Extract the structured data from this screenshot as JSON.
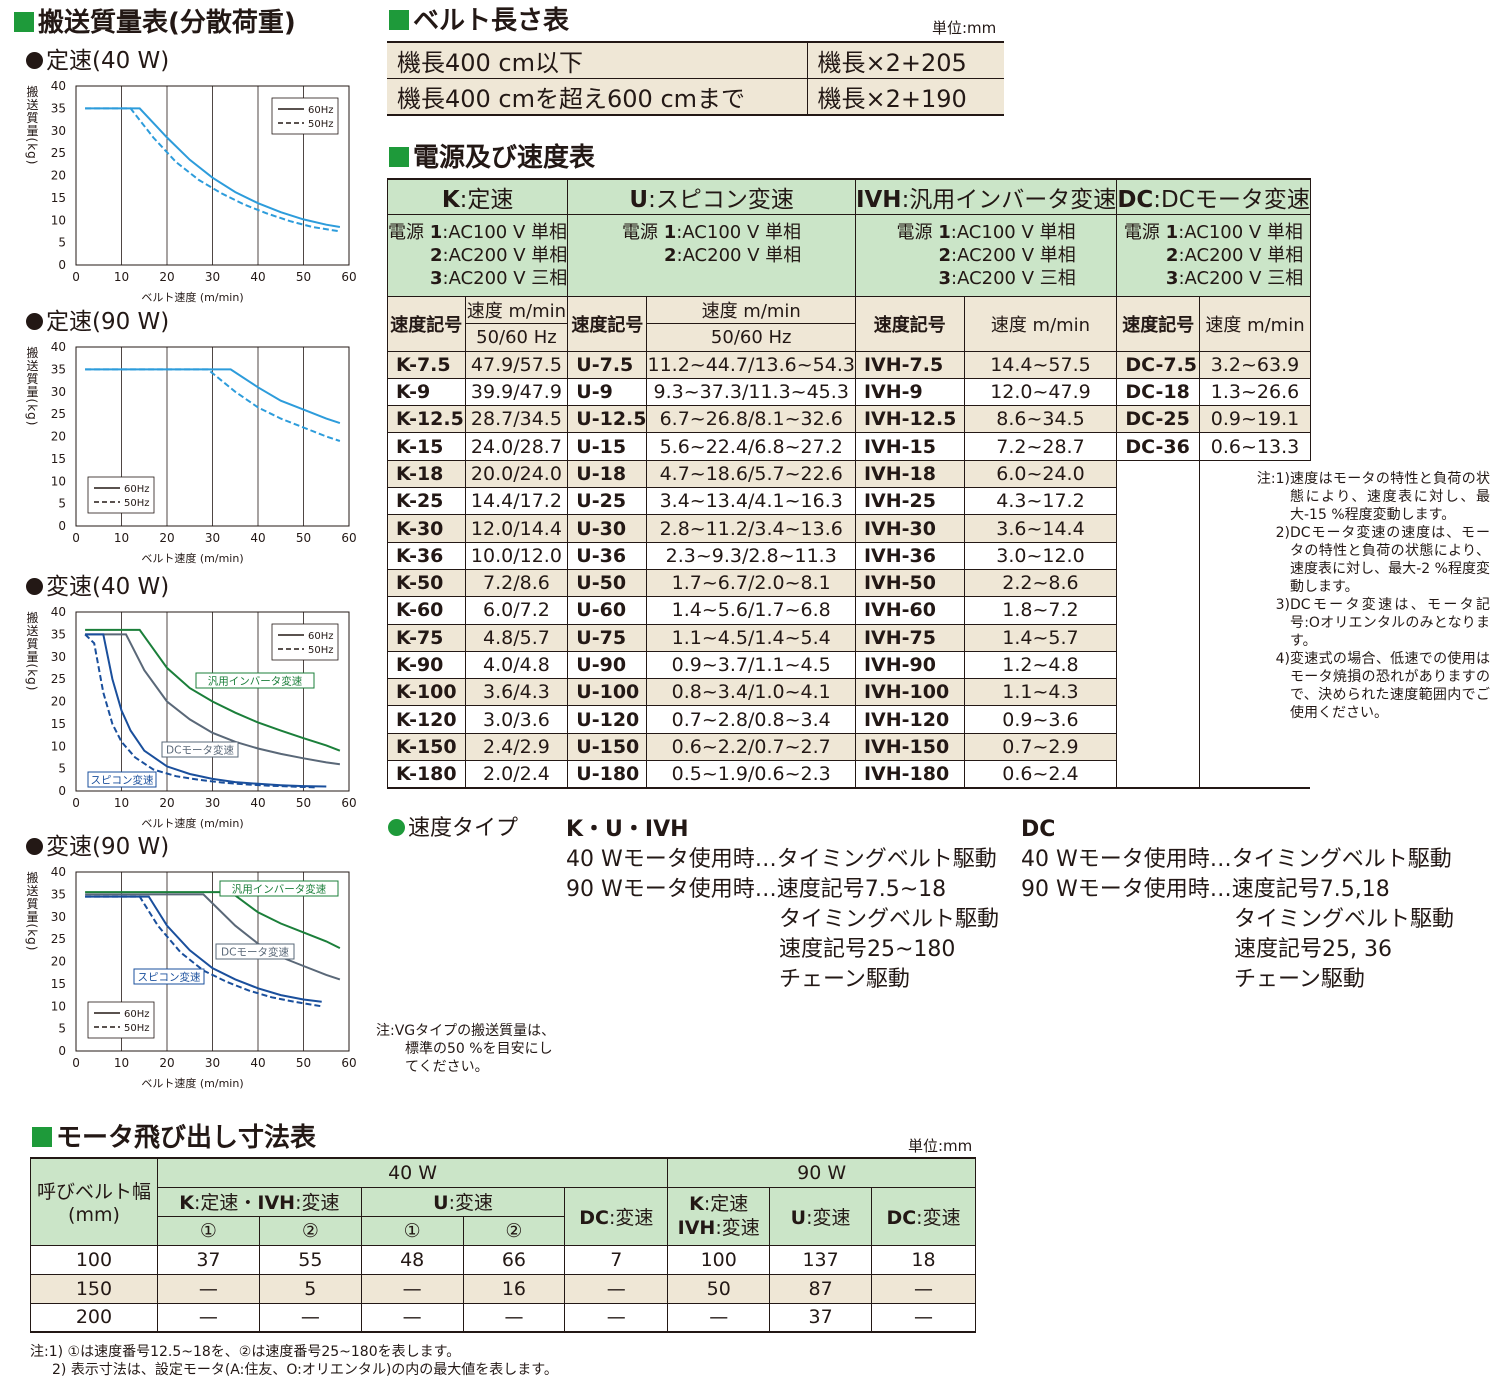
{
  "left": {
    "title": "搬送質量表(分散荷重)",
    "charts": [
      {
        "title": "定速(40 W)",
        "xlabel": "ベルト速度 (m/min)",
        "ylabel": "搬送質量(kg)",
        "legend": [
          "60Hz",
          "50Hz"
        ],
        "labels": []
      },
      {
        "title": "定速(90 W)",
        "xlabel": "ベルト速度 (m/min)",
        "ylabel": "搬送質量(kg)",
        "legend": [
          "60Hz",
          "50Hz"
        ],
        "labels": []
      },
      {
        "title": "変速(40 W)",
        "xlabel": "ベルト速度 (m/min)",
        "ylabel": "搬送質量(kg)",
        "legend": [
          "60Hz",
          "50Hz"
        ],
        "labels": [
          "汎用インバータ変速",
          "DCモータ変速",
          "スピコン変速"
        ]
      },
      {
        "title": "変速(90 W)",
        "xlabel": "ベルト速度 (m/min)",
        "ylabel": "搬送質量(kg)",
        "legend": [
          "60Hz",
          "50Hz"
        ],
        "labels": [
          "汎用インバータ変速",
          "DCモータ変速",
          "スピコン変速"
        ]
      }
    ],
    "note": [
      "注:VGタイプの搬送質量は、",
      "標準の50 %を目安にし",
      "てください。"
    ]
  },
  "chart_data": [
    {
      "type": "line",
      "xlim": [
        0,
        60
      ],
      "ylim": [
        0,
        40
      ],
      "xticks": [
        0,
        10,
        20,
        30,
        40,
        50,
        60
      ],
      "yticks": [
        0,
        5,
        10,
        15,
        20,
        25,
        30,
        35,
        40
      ],
      "grid": "vertical",
      "legend": "top-right",
      "series": [
        {
          "name": "60Hz",
          "color": "#2d9cdb",
          "dash": false,
          "x": [
            2,
            14,
            20,
            25,
            30,
            35,
            40,
            45,
            50,
            55,
            58
          ],
          "y": [
            35,
            35,
            28.5,
            23.5,
            19.5,
            16.3,
            13.8,
            11.8,
            10.2,
            9,
            8.5
          ]
        },
        {
          "name": "50Hz",
          "color": "#2d9cdb",
          "dash": true,
          "x": [
            2,
            12,
            17,
            22,
            27,
            32,
            37,
            42,
            47,
            52,
            58
          ],
          "y": [
            35,
            35,
            28.5,
            23,
            19,
            16,
            13.5,
            11.5,
            9.8,
            8.5,
            7.5
          ]
        }
      ]
    },
    {
      "type": "line",
      "xlim": [
        0,
        60
      ],
      "ylim": [
        0,
        40
      ],
      "xticks": [
        0,
        10,
        20,
        30,
        40,
        50,
        60
      ],
      "yticks": [
        0,
        5,
        10,
        15,
        20,
        25,
        30,
        35,
        40
      ],
      "grid": "vertical",
      "legend": "bottom-left",
      "series": [
        {
          "name": "60Hz",
          "color": "#2d9cdb",
          "dash": false,
          "x": [
            2,
            34,
            40,
            45,
            50,
            55,
            58
          ],
          "y": [
            35,
            35,
            31,
            28,
            26,
            24,
            23
          ]
        },
        {
          "name": "50Hz",
          "color": "#2d9cdb",
          "dash": true,
          "x": [
            2,
            29,
            35,
            40,
            45,
            50,
            55,
            58
          ],
          "y": [
            35,
            35,
            30,
            26.5,
            24,
            22,
            20,
            19
          ]
        }
      ]
    },
    {
      "type": "line",
      "xlim": [
        0,
        60
      ],
      "ylim": [
        0,
        40
      ],
      "xticks": [
        0,
        10,
        20,
        30,
        40,
        50,
        60
      ],
      "yticks": [
        0,
        5,
        10,
        15,
        20,
        25,
        30,
        35,
        40
      ],
      "grid": "vertical",
      "legend": "top-right",
      "series": [
        {
          "name": "汎用インバータ変速",
          "color": "#1b7f3a",
          "dash": false,
          "x": [
            2,
            14,
            20,
            25,
            30,
            35,
            40,
            45,
            50,
            55,
            58
          ],
          "y": [
            36,
            36,
            27.5,
            23,
            20,
            17.5,
            15.3,
            13.5,
            11.8,
            10.2,
            9
          ]
        },
        {
          "name": "DCモータ変速",
          "color": "#5a6878",
          "dash": false,
          "x": [
            2,
            11,
            15,
            20,
            25,
            30,
            35,
            40,
            45,
            50,
            55,
            58
          ],
          "y": [
            35,
            35,
            27,
            20,
            16,
            13,
            11,
            9.5,
            8.3,
            7.3,
            6.4,
            6
          ]
        },
        {
          "name": "スピコン変速 60Hz",
          "color": "#1a4f9c",
          "dash": false,
          "x": [
            2,
            6,
            8,
            10,
            12,
            15,
            20,
            25,
            30,
            35,
            40,
            45,
            50,
            55
          ],
          "y": [
            35,
            35,
            25,
            18,
            13.5,
            9,
            5.5,
            3.8,
            2.7,
            2,
            1.6,
            1.3,
            1.1,
            1
          ]
        },
        {
          "name": "スピコン変速 50Hz",
          "color": "#1a4f9c",
          "dash": true,
          "x": [
            2,
            4,
            6,
            8,
            10,
            13,
            17,
            22,
            27,
            32,
            37,
            42,
            47,
            53
          ],
          "y": [
            35,
            33,
            22,
            15,
            11,
            7.5,
            4.8,
            3.3,
            2.5,
            1.9,
            1.5,
            1.2,
            1,
            0.8
          ]
        }
      ]
    },
    {
      "type": "line",
      "xlim": [
        0,
        60
      ],
      "ylim": [
        0,
        40
      ],
      "xticks": [
        0,
        10,
        20,
        30,
        40,
        50,
        60
      ],
      "yticks": [
        0,
        5,
        10,
        15,
        20,
        25,
        30,
        35,
        40
      ],
      "grid": "vertical",
      "legend": "bottom-left",
      "series": [
        {
          "name": "汎用インバータ変速",
          "color": "#1b7f3a",
          "dash": false,
          "x": [
            2,
            34,
            40,
            45,
            50,
            55,
            58
          ],
          "y": [
            35.5,
            35.5,
            31,
            28.5,
            26.5,
            24.5,
            23
          ]
        },
        {
          "name": "DCモータ変速",
          "color": "#5a6878",
          "dash": false,
          "x": [
            2,
            28,
            35,
            40,
            45,
            50,
            55,
            58
          ],
          "y": [
            35,
            35,
            28,
            24,
            21,
            19,
            17,
            16
          ]
        },
        {
          "name": "スピコン変速 60Hz",
          "color": "#1a4f9c",
          "dash": false,
          "x": [
            2,
            16,
            20,
            25,
            30,
            35,
            40,
            45,
            50,
            54
          ],
          "y": [
            34.5,
            34.5,
            28,
            22.5,
            18.5,
            16,
            14,
            12.5,
            11.5,
            11
          ]
        },
        {
          "name": "スピコン変速 50Hz",
          "color": "#1a4f9c",
          "dash": true,
          "x": [
            2,
            14,
            18,
            23,
            28,
            33,
            38,
            43,
            48,
            54
          ],
          "y": [
            34.5,
            34.5,
            28,
            22,
            18,
            15.5,
            13.5,
            12,
            11,
            10
          ]
        }
      ]
    }
  ],
  "belt": {
    "title": "ベルト長さ表",
    "unit": "単位:mm",
    "rows": [
      {
        "label": "機長400 cm以下",
        "value": "機長×2+205"
      },
      {
        "label": "機長400 cmを超え600 cmまで",
        "value": "機長×2+190"
      }
    ]
  },
  "speed": {
    "title": "電源及び速度表",
    "groups": [
      {
        "code": "K",
        "name": ":定速"
      },
      {
        "code": "U",
        "name": ":スピコン変速"
      },
      {
        "code": "IVH",
        "name": ":汎用インバータ変速"
      },
      {
        "code": "DC",
        "name": ":DCモータ変速"
      }
    ],
    "power": {
      "label": "電源",
      "three": [
        {
          "n": "1",
          "t": ":AC100 V 単相"
        },
        {
          "n": "2",
          "t": ":AC200 V 単相"
        },
        {
          "n": "3",
          "t": ":AC200 V 三相"
        }
      ]
    },
    "hdr": {
      "code": "速度記号",
      "speed": "速度 m/min",
      "hz": "50/60 Hz"
    },
    "rows": [
      [
        "K-7.5",
        "47.9/57.5",
        "U-7.5",
        "11.2~44.7/13.6~54.3",
        "IVH-7.5",
        "14.4~57.5",
        "DC-7.5",
        "3.2~63.9"
      ],
      [
        "K-9",
        "39.9/47.9",
        "U-9",
        "9.3~37.3/11.3~45.3",
        "IVH-9",
        "12.0~47.9",
        "DC-18",
        "1.3~26.6"
      ],
      [
        "K-12.5",
        "28.7/34.5",
        "U-12.5",
        "6.7~26.8/8.1~32.6",
        "IVH-12.5",
        "8.6~34.5",
        "DC-25",
        "0.9~19.1"
      ],
      [
        "K-15",
        "24.0/28.7",
        "U-15",
        "5.6~22.4/6.8~27.2",
        "IVH-15",
        "7.2~28.7",
        "DC-36",
        "0.6~13.3"
      ],
      [
        "K-18",
        "20.0/24.0",
        "U-18",
        "4.7~18.6/5.7~22.6",
        "IVH-18",
        "6.0~24.0",
        "",
        ""
      ],
      [
        "K-25",
        "14.4/17.2",
        "U-25",
        "3.4~13.4/4.1~16.3",
        "IVH-25",
        "4.3~17.2",
        "",
        ""
      ],
      [
        "K-30",
        "12.0/14.4",
        "U-30",
        "2.8~11.2/3.4~13.6",
        "IVH-30",
        "3.6~14.4",
        "",
        ""
      ],
      [
        "K-36",
        "10.0/12.0",
        "U-36",
        "2.3~9.3/2.8~11.3",
        "IVH-36",
        "3.0~12.0",
        "",
        ""
      ],
      [
        "K-50",
        "7.2/8.6",
        "U-50",
        "1.7~6.7/2.0~8.1",
        "IVH-50",
        "2.2~8.6",
        "",
        ""
      ],
      [
        "K-60",
        "6.0/7.2",
        "U-60",
        "1.4~5.6/1.7~6.8",
        "IVH-60",
        "1.8~7.2",
        "",
        ""
      ],
      [
        "K-75",
        "4.8/5.7",
        "U-75",
        "1.1~4.5/1.4~5.4",
        "IVH-75",
        "1.4~5.7",
        "",
        ""
      ],
      [
        "K-90",
        "4.0/4.8",
        "U-90",
        "0.9~3.7/1.1~4.5",
        "IVH-90",
        "1.2~4.8",
        "",
        ""
      ],
      [
        "K-100",
        "3.6/4.3",
        "U-100",
        "0.8~3.4/1.0~4.1",
        "IVH-100",
        "1.1~4.3",
        "",
        ""
      ],
      [
        "K-120",
        "3.0/3.6",
        "U-120",
        "0.7~2.8/0.8~3.4",
        "IVH-120",
        "0.9~3.6",
        "",
        ""
      ],
      [
        "K-150",
        "2.4/2.9",
        "U-150",
        "0.6~2.2/0.7~2.7",
        "IVH-150",
        "0.7~2.9",
        "",
        ""
      ],
      [
        "K-180",
        "2.0/2.4",
        "U-180",
        "0.5~1.9/0.6~2.3",
        "IVH-180",
        "0.6~2.4",
        "",
        ""
      ]
    ],
    "notes": [
      {
        "k": "注:1)",
        "t": "速度はモータの特性と負荷の状態により、速度表に対し、最大-15 %程度変動します。"
      },
      {
        "k": "2)",
        "t": "DCモータ変速の速度は、モータの特性と負荷の状態により、速度表に対し、最大-2 %程度変動します。"
      },
      {
        "k": "3)",
        "t": "DCモータ変速は、モータ記号:Oオリエンタルのみとなります。"
      },
      {
        "k": "4)",
        "t": "変速式の場合、低速での使用はモータ焼損の恐れがありますので、決められた速度範囲内でご使用ください。"
      }
    ]
  },
  "speed_type": {
    "title": "速度タイプ",
    "kuivh": {
      "head": "K・U・IVH",
      "lines": [
        "40 Wモータ使用時…タイミングベルト駆動",
        "90 Wモータ使用時…速度記号7.5~18",
        "タイミングベルト駆動",
        "速度記号25~180",
        "チェーン駆動"
      ]
    },
    "dc": {
      "head": "DC",
      "lines": [
        "40 Wモータ使用時…タイミングベルト駆動",
        "90 Wモータ使用時…速度記号7.5,18",
        "タイミングベルト駆動",
        "速度記号25, 36",
        "チェーン駆動"
      ]
    }
  },
  "motor": {
    "title": "モータ飛び出し寸法表",
    "unit": "単位:mm",
    "bw_label": "呼びベルト幅",
    "bw_unit": "(mm)",
    "w40": "40 W",
    "w90": "90 W",
    "k_ivh_code": "K",
    "k_ivh_name": ":定速・",
    "ivh_code": "IVH",
    "ivh_name": ":変速",
    "u_code": "U",
    "u_name": ":変速",
    "dc_code": "DC",
    "dc_name": ":変速",
    "k90_code": "K",
    "k90_name": ":定速",
    "ivh90_code": "IVH",
    "ivh90_name": ":変速",
    "c1": "①",
    "c2": "②",
    "rows": [
      [
        "100",
        "37",
        "55",
        "48",
        "66",
        "7",
        "100",
        "137",
        "18"
      ],
      [
        "150",
        "—",
        "5",
        "—",
        "16",
        "—",
        "50",
        "87",
        "—"
      ],
      [
        "200",
        "—",
        "—",
        "—",
        "—",
        "—",
        "—",
        "37",
        "—"
      ]
    ],
    "notes": [
      "注:1) ①は速度番号12.5~18を、②は速度番号25~180を表します。",
      "2) 表示寸法は、設定モータ(A:住友、O:オリエンタル)の内の最大値を表します。"
    ]
  }
}
